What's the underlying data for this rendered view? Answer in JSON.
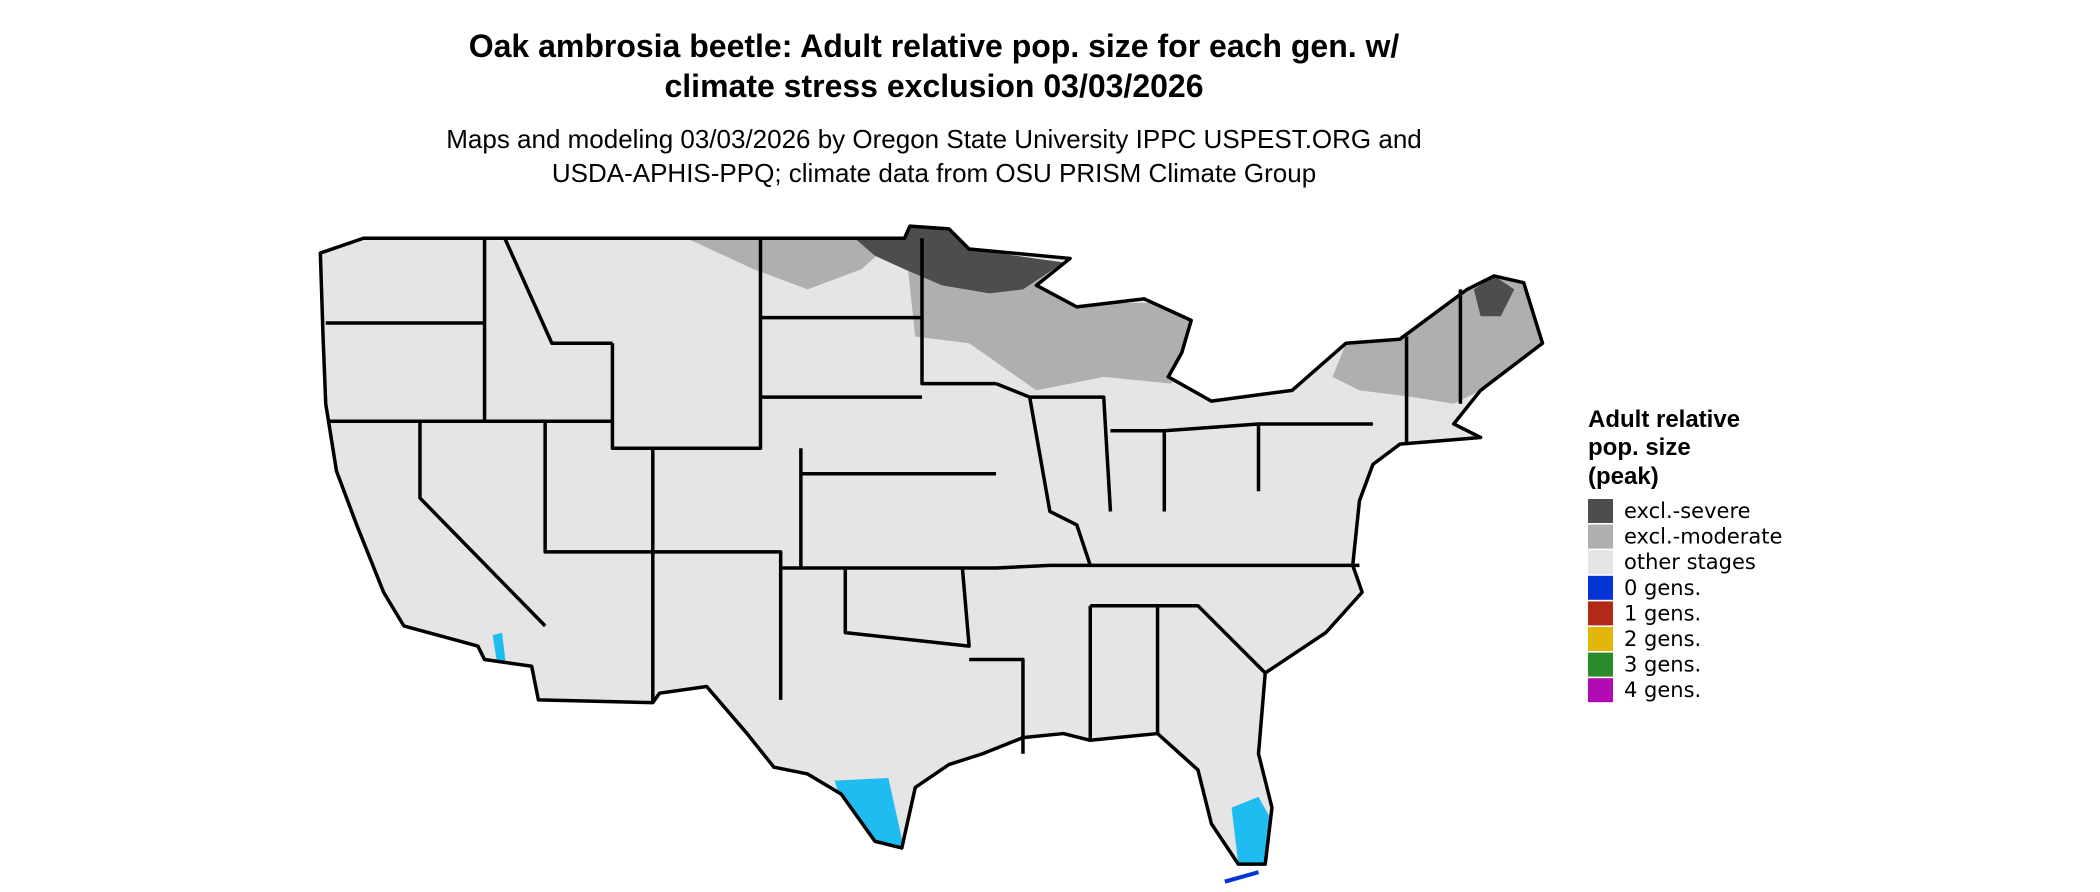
{
  "title": [
    "Oak ambrosia beetle: Adult relative pop. size for each gen. w/",
    "climate stress exclusion 03/03/2026"
  ],
  "subtitle": [
    "Maps and modeling 03/03/2026 by Oregon State University IPPC USPEST.ORG and",
    "USDA-APHIS-PPQ; climate data from OSU PRISM Climate Group"
  ],
  "legend": {
    "title": [
      "Adult relative",
      "pop. size",
      "(peak)"
    ],
    "items": [
      {
        "name": "excl.-severe",
        "color": "#4d4d4d"
      },
      {
        "name": "excl.-moderate",
        "color": "#afafaf"
      },
      {
        "name": "other stages",
        "color": "#e5e5e5"
      },
      {
        "name": "0 gens.",
        "color": "#0433d6"
      },
      {
        "name": "1 gens.",
        "color": "#b22a16"
      },
      {
        "name": "2 gens.",
        "color": "#e2b70a"
      },
      {
        "name": "3 gens.",
        "color": "#2b8a2b"
      },
      {
        "name": "4 gens.",
        "color": "#b20ab2"
      }
    ]
  }
}
